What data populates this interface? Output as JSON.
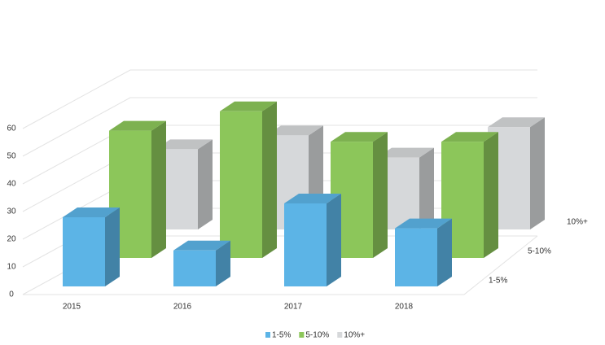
{
  "chart_data": {
    "type": "bar3d",
    "categories": [
      "2015",
      "2016",
      "2017",
      "2018"
    ],
    "series": [
      {
        "name": "1-5%",
        "color": "#5cb4e6",
        "values": [
          25,
          13,
          30,
          21
        ]
      },
      {
        "name": "5-10%",
        "color": "#8cc65a",
        "values": [
          46,
          53,
          42,
          42
        ]
      },
      {
        "name": "10%+",
        "color": "#d6d8da",
        "values": [
          29,
          34,
          26,
          37
        ]
      }
    ],
    "ylim": [
      0,
      60
    ],
    "yticks": [
      0,
      10,
      20,
      30,
      40,
      50,
      60
    ],
    "grid": true
  }
}
